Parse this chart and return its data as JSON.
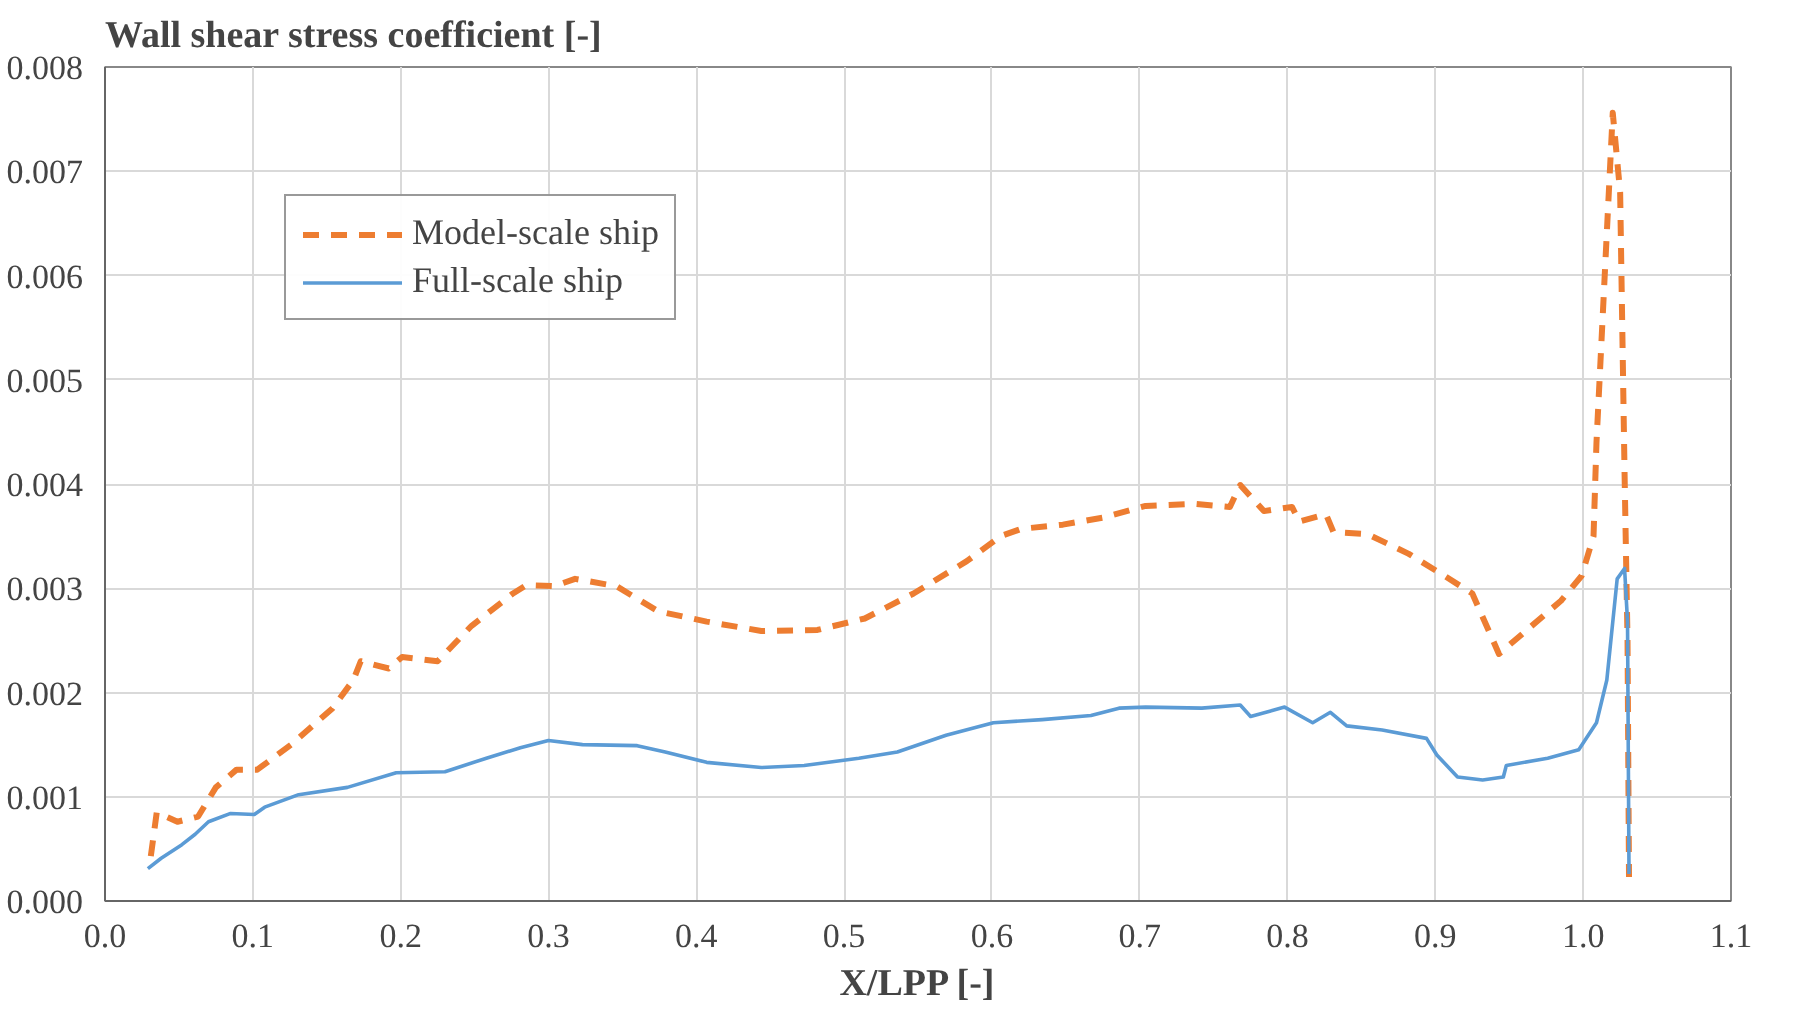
{
  "chart_data": {
    "type": "line",
    "xlabel": "X/LPP [-]",
    "ylabel": "Wall shear stress coefficient [-]",
    "xlim": [
      0,
      1.1
    ],
    "ylim": [
      0,
      0.008
    ],
    "xticks": [
      {
        "value": 0,
        "label": "0.0"
      },
      0.1,
      0.2,
      0.3,
      0.4,
      0.5,
      0.6,
      0.7,
      0.8,
      0.9,
      {
        "value": 1,
        "label": "1.0"
      },
      1.1
    ],
    "yticks": [
      {
        "value": 0,
        "label": "0.000"
      },
      0.001,
      0.002,
      0.003,
      0.004,
      0.005,
      0.006,
      0.007,
      0.008
    ],
    "grid": true,
    "legend": "top left",
    "series": [
      {
        "name": "Model-scale ship",
        "color": "#ed7d31",
        "line_style": "dashed",
        "x": [
          0.031,
          0.035,
          0.049,
          0.063,
          0.075,
          0.089,
          0.103,
          0.126,
          0.154,
          0.168,
          0.173,
          0.192,
          0.201,
          0.225,
          0.248,
          0.276,
          0.285,
          0.304,
          0.318,
          0.346,
          0.374,
          0.407,
          0.444,
          0.482,
          0.514,
          0.547,
          0.583,
          0.606,
          0.62,
          0.648,
          0.676,
          0.704,
          0.737,
          0.761,
          0.768,
          0.784,
          0.803,
          0.808,
          0.826,
          0.831,
          0.854,
          0.882,
          0.906,
          0.925,
          0.943,
          0.957,
          0.985,
          0.999,
          1.007,
          1.009,
          1.02,
          1.025,
          1.028,
          1.03,
          1.031
        ],
        "values": [
          0.00043,
          0.00085,
          0.00076,
          0.00081,
          0.00109,
          0.00126,
          0.00126,
          0.0015,
          0.00185,
          0.00212,
          0.0023,
          0.00223,
          0.00234,
          0.0023,
          0.00264,
          0.00295,
          0.00303,
          0.00302,
          0.00309,
          0.00302,
          0.00278,
          0.00268,
          0.00259,
          0.0026,
          0.00271,
          0.00295,
          0.00326,
          0.0035,
          0.00357,
          0.00361,
          0.00368,
          0.00379,
          0.00381,
          0.00378,
          0.00399,
          0.00374,
          0.00378,
          0.00364,
          0.00371,
          0.00354,
          0.00352,
          0.00333,
          0.00312,
          0.00295,
          0.00237,
          0.00254,
          0.00288,
          0.00312,
          0.0035,
          0.0044,
          0.00756,
          0.0068,
          0.0041,
          0.0025,
          0.00023
        ]
      },
      {
        "name": "Full-scale ship",
        "color": "#5b9bd5",
        "line_style": "solid",
        "x": [
          0.029,
          0.038,
          0.052,
          0.061,
          0.07,
          0.085,
          0.101,
          0.108,
          0.131,
          0.164,
          0.197,
          0.23,
          0.258,
          0.281,
          0.3,
          0.323,
          0.36,
          0.379,
          0.407,
          0.444,
          0.473,
          0.51,
          0.536,
          0.569,
          0.601,
          0.634,
          0.667,
          0.686,
          0.704,
          0.742,
          0.768,
          0.775,
          0.798,
          0.817,
          0.829,
          0.84,
          0.864,
          0.894,
          0.901,
          0.915,
          0.932,
          0.946,
          0.948,
          0.976,
          0.997,
          1.009,
          1.016,
          1.023,
          1.028,
          1.03,
          1.031
        ],
        "values": [
          0.00031,
          0.00041,
          0.00054,
          0.00064,
          0.00076,
          0.00084,
          0.00083,
          0.0009,
          0.00102,
          0.00109,
          0.00123,
          0.00124,
          0.00137,
          0.00147,
          0.00154,
          0.0015,
          0.00149,
          0.00143,
          0.00133,
          0.00128,
          0.0013,
          0.00137,
          0.00143,
          0.00159,
          0.00171,
          0.00174,
          0.00178,
          0.00185,
          0.00186,
          0.00185,
          0.00188,
          0.00177,
          0.00186,
          0.00171,
          0.00181,
          0.00168,
          0.00164,
          0.00156,
          0.0014,
          0.00119,
          0.00116,
          0.00119,
          0.0013,
          0.00137,
          0.00145,
          0.00171,
          0.00212,
          0.00309,
          0.00319,
          0.00268,
          0.00026
        ]
      }
    ]
  }
}
